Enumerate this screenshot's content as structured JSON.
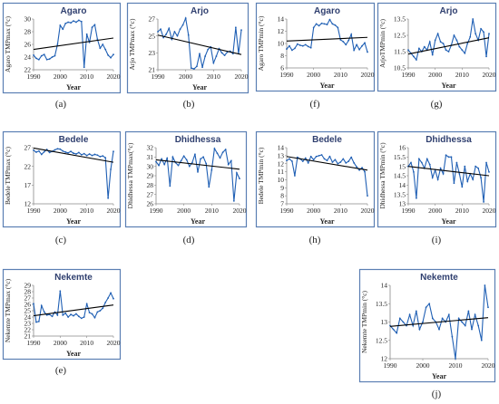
{
  "chart_data": [
    {
      "id": "a",
      "type": "line",
      "caption": "(a)",
      "title": "Agaro",
      "xlabel": "Year",
      "ylabel": "Agaro TMPmax (°c)",
      "xlim": [
        1990,
        2020
      ],
      "ylim": [
        22,
        30
      ],
      "xticks": [
        1990,
        2000,
        2010,
        2020
      ],
      "yticks": [
        22,
        24,
        26,
        28,
        30
      ],
      "series": [
        {
          "x": [
            1990,
            1991,
            1992,
            1993,
            1994,
            1995,
            1996,
            1997,
            1998,
            1999,
            2000,
            2001,
            2002,
            2003,
            2004,
            2005,
            2006,
            2007,
            2008,
            2009,
            2010,
            2011,
            2012,
            2013,
            2014,
            2015,
            2016,
            2017,
            2018,
            2019,
            2020
          ],
          "values": [
            24.3,
            23.8,
            23.6,
            24.2,
            24.4,
            23.6,
            23.7,
            24.0,
            24.2,
            26.0,
            29.0,
            28.4,
            29.3,
            29.5,
            29.4,
            29.7,
            29.5,
            29.8,
            29.6,
            22.4,
            27.6,
            26.3,
            28.7,
            29.1,
            26.8,
            25.4,
            26.0,
            25.2,
            24.3,
            23.9,
            24.4
          ]
        }
      ],
      "trend": [
        25.2,
        27.0
      ]
    },
    {
      "id": "b",
      "type": "line",
      "caption": "(b)",
      "title": "Arjo",
      "xlabel": "Year",
      "ylabel": "Arjo TMPmax (°c)",
      "xlim": [
        1990,
        2020
      ],
      "ylim": [
        21,
        27
      ],
      "xticks": [
        1990,
        2000,
        2010,
        2020
      ],
      "yticks": [
        21,
        23,
        25,
        27
      ],
      "series": [
        {
          "x": [
            1990,
            1991,
            1992,
            1993,
            1994,
            1995,
            1996,
            1997,
            1998,
            1999,
            2000,
            2001,
            2002,
            2003,
            2004,
            2005,
            2006,
            2007,
            2008,
            2009,
            2010,
            2011,
            2012,
            2013,
            2014,
            2015,
            2016,
            2017,
            2018,
            2019,
            2020
          ],
          "values": [
            25.5,
            25.8,
            24.8,
            25.2,
            25.9,
            24.6,
            25.5,
            25.0,
            25.8,
            26.3,
            27.1,
            25.1,
            21.2,
            21.1,
            21.4,
            22.9,
            21.3,
            22.6,
            23.4,
            23.7,
            21.8,
            22.6,
            23.5,
            23.0,
            22.7,
            23.1,
            23.2,
            22.9,
            26.0,
            22.9,
            25.7
          ]
        }
      ],
      "trend": [
        25.1,
        22.8
      ]
    },
    {
      "id": "f",
      "type": "line",
      "caption": "(f)",
      "title": "Agaro",
      "xlabel": "Year",
      "ylabel": "Agaro TMPmin (°c)",
      "xlim": [
        1990,
        2020
      ],
      "ylim": [
        6,
        14
      ],
      "xticks": [
        1990,
        2000,
        2010,
        2020
      ],
      "yticks": [
        6,
        8,
        10,
        12,
        14
      ],
      "series": [
        {
          "x": [
            1990,
            1991,
            1992,
            1993,
            1994,
            1995,
            1996,
            1997,
            1998,
            1999,
            2000,
            2001,
            2002,
            2003,
            2004,
            2005,
            2006,
            2007,
            2008,
            2009,
            2010,
            2011,
            2012,
            2013,
            2014,
            2015,
            2016,
            2017,
            2018,
            2019,
            2020
          ],
          "values": [
            9.1,
            9.6,
            8.9,
            9.2,
            9.9,
            9.7,
            9.6,
            9.8,
            9.5,
            9.3,
            12.6,
            13.2,
            12.9,
            13.3,
            13.2,
            13.1,
            13.9,
            13.2,
            13.0,
            12.6,
            10.6,
            10.3,
            9.8,
            10.5,
            11.5,
            8.9,
            9.8,
            9.0,
            9.6,
            10.1,
            8.6
          ]
        }
      ],
      "trend": [
        10.4,
        11.0
      ]
    },
    {
      "id": "g",
      "type": "line",
      "caption": "(g)",
      "title": "Arjo",
      "xlabel": "Year",
      "ylabel": "ArjoTMPmin (°c)",
      "xlim": [
        1990,
        2020
      ],
      "ylim": [
        10.5,
        13.5
      ],
      "xticks": [
        1990,
        2000,
        2010,
        2020
      ],
      "yticks": [
        10.5,
        11.5,
        12.5,
        13.5
      ],
      "series": [
        {
          "x": [
            1990,
            1991,
            1992,
            1993,
            1994,
            1995,
            1996,
            1997,
            1998,
            1999,
            2000,
            2001,
            2002,
            2003,
            2004,
            2005,
            2006,
            2007,
            2008,
            2009,
            2010,
            2011,
            2012,
            2013,
            2014,
            2015,
            2016,
            2017,
            2018,
            2019,
            2020
          ],
          "values": [
            11.6,
            11.4,
            11.2,
            11.0,
            11.7,
            11.5,
            11.8,
            11.6,
            12.1,
            11.3,
            12.2,
            12.6,
            12.1,
            12.0,
            11.6,
            11.5,
            11.9,
            12.5,
            12.2,
            11.8,
            11.6,
            11.4,
            12.0,
            12.4,
            13.5,
            12.6,
            12.2,
            12.9,
            12.7,
            11.2,
            12.6
          ]
        }
      ],
      "trend": [
        11.35,
        12.35
      ]
    },
    {
      "id": "c",
      "type": "line",
      "caption": "(c)",
      "title": "Bedele",
      "xlabel": "Year",
      "ylabel": "Bedele TMPmax (°c)",
      "xlim": [
        1990,
        2020
      ],
      "ylim": [
        12,
        27
      ],
      "xticks": [
        1990,
        2000,
        2010,
        2020
      ],
      "yticks": [
        12,
        17,
        22,
        27
      ],
      "series": [
        {
          "x": [
            1990,
            1991,
            1992,
            1993,
            1994,
            1995,
            1996,
            1997,
            1998,
            1999,
            2000,
            2001,
            2002,
            2003,
            2004,
            2005,
            2006,
            2007,
            2008,
            2009,
            2010,
            2011,
            2012,
            2013,
            2014,
            2015,
            2016,
            2017,
            2018,
            2019,
            2020
          ],
          "values": [
            26.3,
            25.8,
            26.1,
            25.2,
            25.9,
            26.5,
            25.7,
            26.0,
            26.4,
            26.7,
            26.6,
            26.1,
            25.8,
            25.6,
            26.0,
            25.5,
            25.3,
            25.7,
            25.1,
            25.4,
            24.9,
            25.3,
            24.9,
            25.2,
            25.0,
            24.6,
            24.8,
            24.3,
            13.5,
            21.2,
            26.0
          ]
        }
      ],
      "trend": [
        26.9,
        23.1
      ]
    },
    {
      "id": "d",
      "type": "line",
      "caption": "(d)",
      "title": "Dhidhessa",
      "xlabel": "Year",
      "ylabel": "Dhidhessa TMPmax(°c)",
      "xlim": [
        1990,
        2020
      ],
      "ylim": [
        26,
        32
      ],
      "xticks": [
        1990,
        2000,
        2010,
        2020
      ],
      "yticks": [
        26,
        27,
        28,
        29,
        30,
        31,
        32
      ],
      "series": [
        {
          "x": [
            1990,
            1991,
            1992,
            1993,
            1994,
            1995,
            1996,
            1997,
            1998,
            1999,
            2000,
            2001,
            2002,
            2003,
            2004,
            2005,
            2006,
            2007,
            2008,
            2009,
            2010,
            2011,
            2012,
            2013,
            2014,
            2015,
            2016,
            2017,
            2018,
            2019,
            2020
          ],
          "values": [
            30.5,
            30.1,
            30.8,
            30.2,
            30.9,
            27.9,
            31.0,
            30.4,
            30.1,
            30.6,
            31.1,
            30.7,
            30.0,
            30.4,
            31.3,
            29.4,
            30.8,
            31.0,
            30.3,
            27.8,
            29.6,
            31.9,
            31.4,
            30.9,
            31.5,
            31.8,
            30.2,
            30.6,
            26.3,
            29.3,
            28.7
          ]
        }
      ],
      "trend": [
        30.7,
        29.7
      ]
    },
    {
      "id": "h",
      "type": "line",
      "caption": "(h)",
      "title": "Bedele",
      "xlabel": "Year",
      "ylabel": "Bedele TMPmin (°c)",
      "xlim": [
        1990,
        2020
      ],
      "ylim": [
        7,
        14
      ],
      "xticks": [
        1990,
        2000,
        2010,
        2020
      ],
      "yticks": [
        7,
        8,
        9,
        10,
        11,
        12,
        13,
        14
      ],
      "series": [
        {
          "x": [
            1990,
            1991,
            1992,
            1993,
            1994,
            1995,
            1996,
            1997,
            1998,
            1999,
            2000,
            2001,
            2002,
            2003,
            2004,
            2005,
            2006,
            2007,
            2008,
            2009,
            2010,
            2011,
            2012,
            2013,
            2014,
            2015,
            2016,
            2017,
            2018,
            2019,
            2020
          ],
          "values": [
            12.4,
            12.6,
            12.3,
            10.5,
            12.8,
            12.6,
            12.3,
            12.7,
            12.1,
            12.9,
            12.5,
            12.9,
            13.0,
            13.1,
            12.6,
            12.4,
            12.9,
            12.2,
            12.5,
            12.0,
            12.2,
            12.6,
            12.1,
            12.3,
            12.8,
            12.1,
            11.6,
            11.2,
            11.5,
            11.0,
            8.0
          ]
        }
      ],
      "trend": [
        12.9,
        11.2
      ]
    },
    {
      "id": "i",
      "type": "line",
      "caption": "(i)",
      "title": "Dhidhessa",
      "xlabel": "Year",
      "ylabel": "Dhidhessa TMPmin (°c)",
      "xlim": [
        1990,
        2020
      ],
      "ylim": [
        13,
        16
      ],
      "xticks": [
        1990,
        2000,
        2010,
        2020
      ],
      "yticks": [
        13,
        13.5,
        14,
        14.5,
        15,
        15.5,
        16
      ],
      "series": [
        {
          "x": [
            1990,
            1991,
            1992,
            1993,
            1994,
            1995,
            1996,
            1997,
            1998,
            1999,
            2000,
            2001,
            2002,
            2003,
            2004,
            2005,
            2006,
            2007,
            2008,
            2009,
            2010,
            2011,
            2012,
            2013,
            2014,
            2015,
            2016,
            2017,
            2018,
            2019,
            2020
          ],
          "values": [
            15.0,
            15.2,
            14.7,
            13.3,
            15.4,
            15.2,
            14.9,
            15.4,
            15.1,
            14.4,
            14.8,
            14.3,
            14.9,
            14.6,
            15.6,
            15.5,
            15.5,
            14.1,
            15.2,
            14.6,
            13.9,
            15.0,
            14.2,
            14.6,
            14.3,
            15.0,
            14.9,
            14.4,
            13.1,
            15.2,
            14.7
          ]
        }
      ],
      "trend": [
        15.0,
        14.5
      ]
    },
    {
      "id": "e",
      "type": "line",
      "caption": "(e)",
      "title": "Nekemte",
      "xlabel": "Year",
      "ylabel": "Nekemte TMPmax (°c)",
      "xlim": [
        1990,
        2020
      ],
      "ylim": [
        21,
        29
      ],
      "xticks": [
        1990,
        2000,
        2010,
        2020
      ],
      "yticks": [
        21,
        22,
        23,
        24,
        25,
        26,
        27,
        28,
        29
      ],
      "series": [
        {
          "x": [
            1990,
            1991,
            1992,
            1993,
            1994,
            1995,
            1996,
            1997,
            1998,
            1999,
            2000,
            2001,
            2002,
            2003,
            2004,
            2005,
            2006,
            2007,
            2008,
            2009,
            2010,
            2011,
            2012,
            2013,
            2014,
            2015,
            2016,
            2017,
            2018,
            2019,
            2020
          ],
          "values": [
            26.1,
            23.2,
            23.3,
            25.8,
            24.8,
            24.3,
            24.4,
            24.1,
            24.8,
            24.3,
            28.1,
            24.3,
            24.6,
            24.0,
            24.4,
            24.2,
            24.5,
            24.1,
            23.8,
            24.0,
            26.1,
            24.7,
            24.5,
            23.9,
            24.8,
            25.0,
            25.4,
            26.3,
            27.0,
            27.8,
            26.9
          ]
        }
      ],
      "trend": [
        24.2,
        25.9
      ]
    },
    {
      "id": "j",
      "type": "line",
      "caption": "(j)",
      "title": "Nekemte",
      "xlabel": "Year",
      "ylabel": "Nekemte TMPmin (°c)",
      "xlim": [
        1990,
        2020
      ],
      "ylim": [
        12,
        14
      ],
      "xticks": [
        1990,
        2000,
        2010,
        2020
      ],
      "yticks": [
        12,
        12.5,
        13,
        13.5,
        14
      ],
      "series": [
        {
          "x": [
            1990,
            1991,
            1992,
            1993,
            1994,
            1995,
            1996,
            1997,
            1998,
            1999,
            2000,
            2001,
            2002,
            2003,
            2004,
            2005,
            2006,
            2007,
            2008,
            2009,
            2010,
            2011,
            2012,
            2013,
            2014,
            2015,
            2016,
            2017,
            2018,
            2019,
            2020
          ],
          "values": [
            12.9,
            12.8,
            12.7,
            13.1,
            13.0,
            12.9,
            13.2,
            12.9,
            13.3,
            12.8,
            13.0,
            13.4,
            13.5,
            13.1,
            13.0,
            12.8,
            13.1,
            13.0,
            13.2,
            12.6,
            12.0,
            13.1,
            13.0,
            12.9,
            13.3,
            12.8,
            13.2,
            12.9,
            12.5,
            14.0,
            13.4
          ]
        }
      ],
      "trend": [
        12.88,
        13.12
      ]
    }
  ]
}
